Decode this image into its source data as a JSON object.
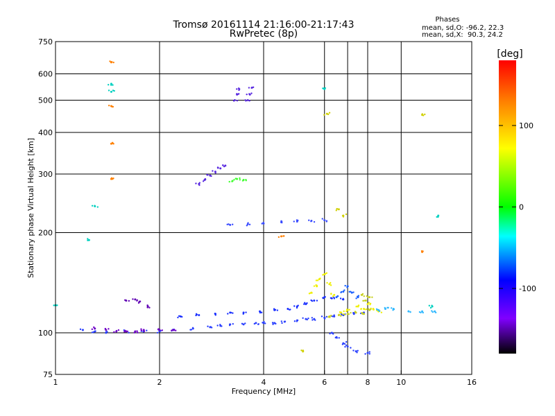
{
  "chart_data": {
    "type": "scatter",
    "title": "Tromsø 20161114 21:16:00-21:17:43",
    "subtitle": "RwPretec (8p)",
    "xlabel": "Frequency [MHz]",
    "ylabel": "Stationary phase Virtual Height [km]",
    "x_scale": "log",
    "y_scale": "log",
    "xlim": [
      1,
      16
    ],
    "ylim": [
      75,
      750
    ],
    "x_ticks": [
      1,
      2,
      4,
      6,
      8,
      10,
      16
    ],
    "y_ticks": [
      75,
      100,
      200,
      300,
      400,
      500,
      600,
      750
    ],
    "x_grid": [
      2,
      4,
      6,
      7,
      8,
      10
    ],
    "y_grid": [
      100,
      200,
      300,
      400,
      500,
      600
    ],
    "grid": true,
    "phases": {
      "heading": "Phases",
      "o_line": "mean, sd,O: -96.2, 22.3",
      "x_line": "mean, sd,X:  90.3, 24.2"
    },
    "colorbar": {
      "label": "[deg]",
      "range": [
        -180,
        180
      ],
      "ticks": [
        100,
        0,
        -100
      ],
      "colors": [
        "#ff0000",
        "#ff8000",
        "#ffff00",
        "#00ff00",
        "#00ffff",
        "#0000ff",
        "#8000ff",
        "#000000"
      ]
    },
    "series": [
      {
        "color": "#2a40ff",
        "points": [
          [
            1.2,
            102
          ],
          [
            1.3,
            101
          ],
          [
            1.4,
            100
          ],
          [
            1.6,
            101
          ],
          [
            1.8,
            101
          ],
          [
            2.0,
            101
          ],
          [
            2.2,
            102
          ],
          [
            2.5,
            103
          ],
          [
            2.8,
            104
          ],
          [
            3.0,
            105
          ],
          [
            3.2,
            106
          ],
          [
            3.5,
            106
          ],
          [
            3.8,
            107
          ],
          [
            4.0,
            107
          ],
          [
            4.3,
            107
          ],
          [
            4.6,
            108
          ],
          [
            5.0,
            109
          ],
          [
            5.3,
            110
          ],
          [
            5.6,
            110
          ],
          [
            6.0,
            111
          ],
          [
            6.4,
            112
          ],
          [
            6.8,
            113
          ],
          [
            7.3,
            114
          ],
          [
            7.8,
            115
          ]
        ]
      },
      {
        "color": "#1a30ff",
        "points": [
          [
            2.3,
            112
          ],
          [
            2.6,
            113
          ],
          [
            2.9,
            114
          ],
          [
            3.2,
            115
          ],
          [
            3.5,
            115
          ],
          [
            3.9,
            116
          ],
          [
            4.3,
            117
          ],
          [
            4.7,
            118
          ],
          [
            5.0,
            120
          ],
          [
            5.3,
            122
          ],
          [
            5.6,
            125
          ],
          [
            6.0,
            128
          ],
          [
            6.3,
            127
          ],
          [
            6.8,
            126
          ]
        ]
      },
      {
        "color": "#6e00c8",
        "points": [
          [
            1.3,
            103
          ],
          [
            1.4,
            102
          ],
          [
            1.5,
            101
          ],
          [
            1.6,
            101
          ],
          [
            1.7,
            101
          ],
          [
            1.8,
            102
          ],
          [
            2.0,
            102
          ],
          [
            2.2,
            102
          ]
        ]
      },
      {
        "color": "#6000b4",
        "points": [
          [
            1.6,
            125
          ],
          [
            1.7,
            126
          ],
          [
            1.75,
            124
          ],
          [
            1.85,
            120
          ]
        ]
      },
      {
        "color": "#3a4cff",
        "points": [
          [
            3.2,
            211
          ],
          [
            3.6,
            212
          ],
          [
            4.0,
            213
          ],
          [
            4.5,
            215
          ],
          [
            5.0,
            216
          ],
          [
            5.5,
            217
          ],
          [
            6.0,
            218
          ]
        ]
      },
      {
        "color": "#5a2ae0",
        "points": [
          [
            2.6,
            280
          ],
          [
            2.7,
            288
          ],
          [
            2.8,
            297
          ],
          [
            2.9,
            305
          ],
          [
            3.0,
            312
          ],
          [
            3.1,
            318
          ]
        ]
      },
      {
        "color": "#5a2ae0",
        "points": [
          [
            3.3,
            500
          ],
          [
            3.35,
            520
          ],
          [
            3.4,
            540
          ],
          [
            3.6,
            500
          ],
          [
            3.65,
            520
          ],
          [
            3.7,
            545
          ]
        ]
      },
      {
        "color": "#40ff30",
        "points": [
          [
            3.25,
            286
          ],
          [
            3.35,
            290
          ],
          [
            3.5,
            288
          ]
        ]
      },
      {
        "color": "#f0f000",
        "points": [
          [
            5.5,
            132
          ],
          [
            5.7,
            138
          ],
          [
            5.8,
            145
          ],
          [
            6.0,
            150
          ],
          [
            6.2,
            140
          ],
          [
            6.4,
            130
          ],
          [
            7.5,
            120
          ],
          [
            7.8,
            118
          ],
          [
            8.0,
            122
          ],
          [
            8.3,
            118
          ],
          [
            8.6,
            116
          ],
          [
            7.0,
            117
          ],
          [
            6.7,
            115
          ]
        ]
      },
      {
        "color": "#c8d020",
        "points": [
          [
            6.2,
            112
          ],
          [
            6.6,
            113
          ],
          [
            7.0,
            114
          ],
          [
            7.4,
            115
          ],
          [
            7.8,
            114
          ],
          [
            8.1,
            117
          ],
          [
            7.9,
            125
          ],
          [
            7.7,
            130
          ],
          [
            8.1,
            128
          ]
        ]
      },
      {
        "color": "#2a40ff",
        "points": [
          [
            6.3,
            100
          ],
          [
            6.5,
            97
          ],
          [
            6.8,
            93
          ],
          [
            7.0,
            91
          ],
          [
            7.4,
            88
          ],
          [
            8.0,
            87
          ]
        ]
      },
      {
        "color": "#1a60ff",
        "points": [
          [
            6.5,
            128
          ],
          [
            6.8,
            133
          ],
          [
            7.0,
            138
          ],
          [
            7.2,
            132
          ],
          [
            7.5,
            128
          ]
        ]
      },
      {
        "color": "#30b8ff",
        "points": [
          [
            8.6,
            117
          ],
          [
            9.0,
            118
          ],
          [
            9.5,
            118
          ],
          [
            10.5,
            116
          ],
          [
            11.5,
            116
          ],
          [
            12.5,
            116
          ]
        ]
      },
      {
        "color": "#ff8000",
        "points": [
          [
            1.45,
            650
          ],
          [
            1.45,
            480
          ],
          [
            1.45,
            370
          ],
          [
            1.45,
            290
          ],
          [
            4.5,
            195
          ],
          [
            11.5,
            175
          ]
        ]
      },
      {
        "color": "#00d0c0",
        "points": [
          [
            1.45,
            560
          ],
          [
            1.45,
            530
          ],
          [
            1.3,
            240
          ],
          [
            1.25,
            190
          ],
          [
            1.0,
            121
          ],
          [
            6.0,
            540
          ],
          [
            12.3,
            120
          ],
          [
            12.8,
            225
          ]
        ]
      },
      {
        "color": "#d0d000",
        "points": [
          [
            6.1,
            455
          ],
          [
            11.5,
            452
          ],
          [
            6.6,
            235
          ],
          [
            6.8,
            225
          ],
          [
            5.2,
            88
          ]
        ]
      }
    ]
  }
}
